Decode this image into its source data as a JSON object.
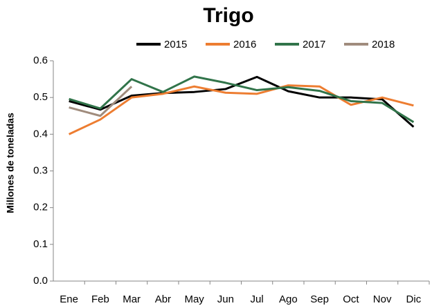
{
  "chart_data": {
    "type": "line",
    "title": "Trigo",
    "y_label": "Millones de toneladas",
    "categories": [
      "Ene",
      "Feb",
      "Mar",
      "Abr",
      "May",
      "Jun",
      "Jul",
      "Ago",
      "Sep",
      "Oct",
      "Nov",
      "Dic"
    ],
    "series": [
      {
        "name": "2015",
        "color": "#000000",
        "values": [
          0.49,
          0.467,
          0.505,
          0.512,
          0.515,
          0.523,
          0.556,
          0.517,
          0.5,
          0.5,
          0.495,
          0.42
        ]
      },
      {
        "name": "2016",
        "color": "#ed7d31",
        "values": [
          0.4,
          0.44,
          0.5,
          0.51,
          0.53,
          0.513,
          0.51,
          0.533,
          0.53,
          0.48,
          0.5,
          0.478
        ]
      },
      {
        "name": "2017",
        "color": "#31744a",
        "values": [
          0.496,
          0.47,
          0.55,
          0.515,
          0.557,
          0.54,
          0.52,
          0.528,
          0.518,
          0.49,
          0.485,
          0.433
        ]
      },
      {
        "name": "2018",
        "color": "#a08c7d",
        "values": [
          0.473,
          0.45,
          0.53,
          null,
          null,
          null,
          null,
          null,
          null,
          null,
          null,
          null
        ]
      }
    ],
    "ylim": [
      0,
      0.6
    ],
    "yticks": [
      {
        "value": 0,
        "label": "0.0"
      },
      0.1,
      0.2,
      0.3,
      0.4,
      0.5,
      0.6
    ],
    "grid": false
  }
}
